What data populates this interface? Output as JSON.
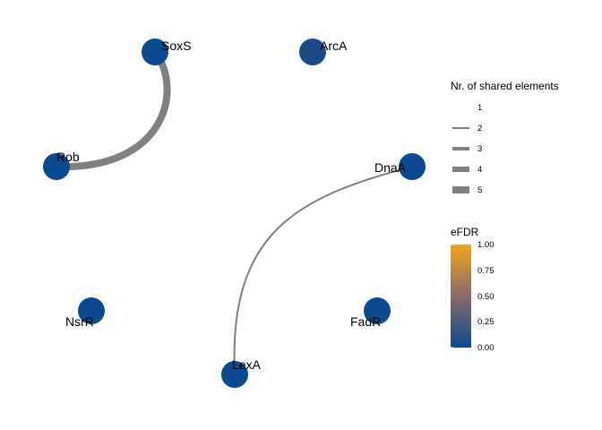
{
  "nodes": [
    {
      "id": "SoxS",
      "label": "SoxS",
      "efdr": 0.02
    },
    {
      "id": "ArcA",
      "label": "ArcA",
      "efdr": 0.08
    },
    {
      "id": "Rob",
      "label": "Rob",
      "efdr": 0.02
    },
    {
      "id": "DnaA",
      "label": "DnaA",
      "efdr": 0.02
    },
    {
      "id": "NsrR",
      "label": "NsrR",
      "efdr": 0.02
    },
    {
      "id": "FadR",
      "label": "FadR",
      "efdr": 0.02
    },
    {
      "id": "LexA",
      "label": "LexA",
      "efdr": 0.02
    }
  ],
  "edges": [
    {
      "source": "SoxS",
      "target": "Rob",
      "shared_elements": 5
    },
    {
      "source": "DnaA",
      "target": "LexA",
      "shared_elements": 2
    }
  ],
  "legend": {
    "width_title": "Nr. of shared elements",
    "width_items": [
      "1",
      "2",
      "3",
      "4",
      "5"
    ],
    "color_title": "eFDR",
    "color_ticks": [
      "1.00",
      "0.75",
      "0.50",
      "0.25",
      "0.00"
    ]
  },
  "colors": {
    "node_low": "#0b4a8f",
    "node_mid": "#8a6a6a",
    "node_high": "#f2a51e",
    "edge": "#808080"
  }
}
